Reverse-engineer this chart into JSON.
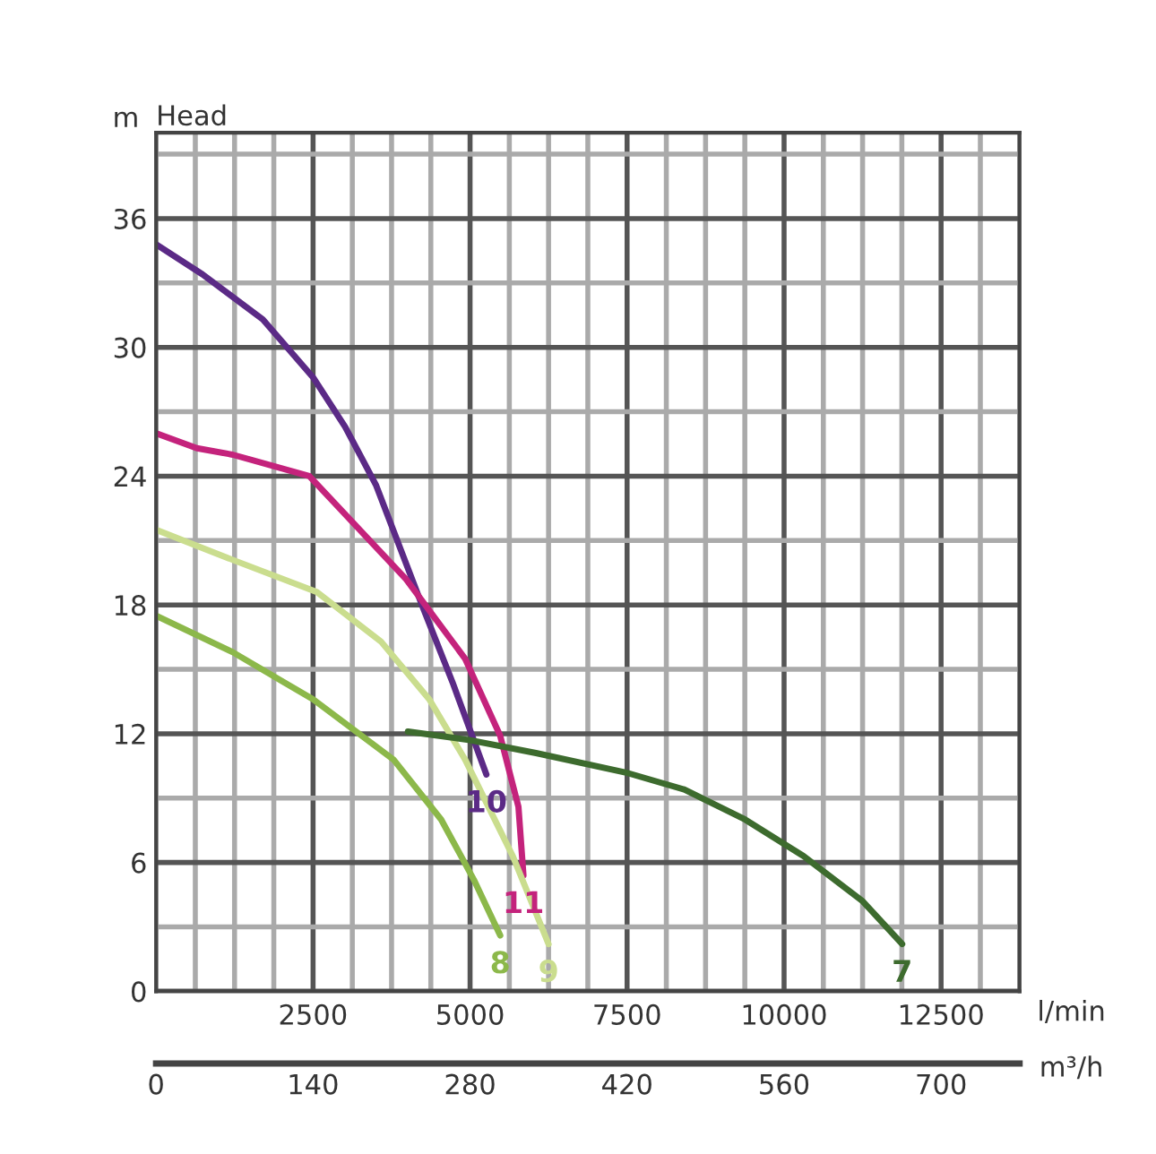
{
  "chart_data": {
    "type": "line",
    "title": "Head",
    "ylabel": "m",
    "xlabel": "l/min",
    "x2label": "m³/h",
    "xlim": [
      0,
      13750
    ],
    "ylim": [
      0,
      40
    ],
    "xticks": [
      {
        "value": 0,
        "label": null
      },
      {
        "value": 625,
        "label": null
      },
      {
        "value": 1250,
        "label": null
      },
      {
        "value": 1875,
        "label": null
      },
      2500,
      {
        "value": 3125,
        "label": null
      },
      {
        "value": 3750,
        "label": null
      },
      {
        "value": 4375,
        "label": null
      },
      5000,
      {
        "value": 5625,
        "label": null
      },
      {
        "value": 6250,
        "label": null
      },
      {
        "value": 6875,
        "label": null
      },
      7500,
      {
        "value": 8125,
        "label": null
      },
      {
        "value": 8750,
        "label": null
      },
      {
        "value": 9375,
        "label": null
      },
      10000,
      {
        "value": 10625,
        "label": null
      },
      {
        "value": 11250,
        "label": null
      },
      {
        "value": 11875,
        "label": null
      },
      12500,
      {
        "value": 13125,
        "label": null
      },
      {
        "value": 13750,
        "label": null
      }
    ],
    "yticks": [
      0,
      {
        "value": 3,
        "label": null
      },
      6,
      {
        "value": 9,
        "label": null
      },
      12,
      {
        "value": 15,
        "label": null
      },
      18,
      {
        "value": 21,
        "label": null
      },
      24,
      {
        "value": 27,
        "label": null
      },
      30,
      {
        "value": 33,
        "label": null
      },
      36,
      {
        "value": 39,
        "label": null
      }
    ],
    "x2lim": [
      0,
      770
    ],
    "x2ticks": [
      0,
      140,
      280,
      420,
      560,
      700
    ],
    "grid": true,
    "legend": false,
    "marker": "none",
    "line_style": "solid",
    "series": [
      {
        "name": "10",
        "color": "#5b2a86",
        "x": [
          0,
          740,
          1700,
          2500,
          3010,
          3500,
          4260,
          4720,
          5260
        ],
        "values": [
          34.8,
          33.4,
          31.3,
          28.6,
          26.3,
          23.6,
          17.8,
          14.4,
          10.1
        ]
      },
      {
        "name": "11",
        "color": "#c4237c",
        "x": [
          0,
          650,
          1220,
          2440,
          3980,
          4920,
          5480,
          5770,
          5850
        ],
        "values": [
          26.0,
          25.3,
          25.0,
          24.0,
          19.2,
          15.5,
          11.9,
          8.6,
          5.4
        ]
      },
      {
        "name": "9",
        "color": "#cadd8e",
        "x": [
          0,
          1220,
          2560,
          3580,
          4350,
          4920,
          5680,
          6250
        ],
        "values": [
          21.5,
          20.1,
          18.6,
          16.3,
          13.6,
          10.8,
          6.3,
          2.2
        ]
      },
      {
        "name": "8",
        "color": "#8cb84a",
        "x": [
          0,
          1220,
          2500,
          3780,
          4540,
          5060,
          5480
        ],
        "values": [
          17.5,
          15.8,
          13.6,
          10.8,
          8.0,
          5.2,
          2.6
        ]
      },
      {
        "name": "7",
        "color": "#3d6b2e",
        "x": [
          4010,
          5000,
          6050,
          7470,
          8410,
          9380,
          10310,
          11250,
          11880
        ],
        "values": [
          12.1,
          11.7,
          11.1,
          10.2,
          9.4,
          8.0,
          6.3,
          4.2,
          2.2
        ]
      }
    ]
  }
}
